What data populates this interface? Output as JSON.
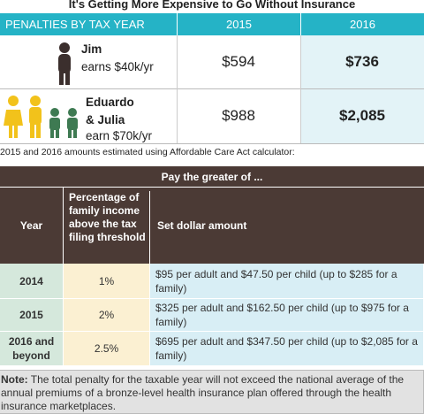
{
  "header": {
    "title": "It's Getting More Expensive to Go Without Insurance"
  },
  "penalties_table": {
    "columns": [
      "PENALTIES BY TAX YEAR",
      "2015",
      "2016"
    ],
    "rows": [
      {
        "name": "Jim",
        "detail": "earns $40k/yr",
        "values": [
          "$594",
          "$736"
        ]
      },
      {
        "name": "Eduardo & Julia",
        "detail": "earn $70k/yr",
        "values": [
          "$988",
          "$2,085"
        ]
      }
    ]
  },
  "caption": "2015 and 2016 amounts estimated using Affordable Care Act calculator:",
  "greater_table": {
    "title": "Pay the greater of ...",
    "columns": [
      "Year",
      "Percentage of family income above the tax filing threshold",
      "Set dollar amount"
    ],
    "rows": [
      [
        "2014",
        "1%",
        "$95 per adult and $47.50 per child (up to $285 for a family)"
      ],
      [
        "2015",
        "2%",
        "$325 per adult and $162.50 per child (up to $975 for a family)"
      ],
      [
        "2016 and beyond",
        "2.5%",
        "$695 per adult and $347.50 per child (up to $2,085 for a family)"
      ]
    ]
  },
  "note": {
    "label": "Note:",
    "text": " The total penalty for the taxable year will not exceed the national average of the annual premiums of a bronze-level health insurance plan offered through the health insurance marketplaces."
  }
}
